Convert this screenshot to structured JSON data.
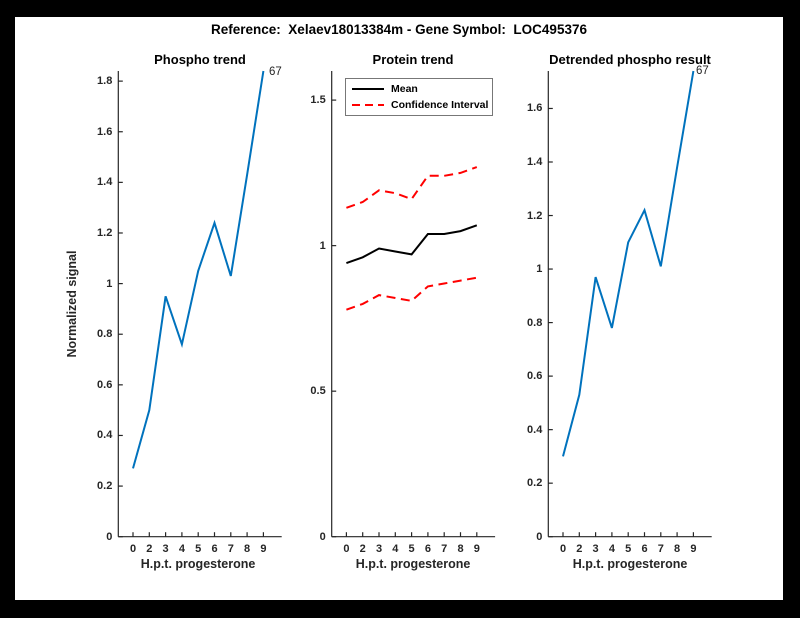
{
  "figure": {
    "title": "Reference:  Xelaev18013384m - Gene Symbol:  LOC495376",
    "background": "#ffffff",
    "frame_color": "#000000",
    "axis_color": "#262626",
    "accent_blue": "#0072BD",
    "accent_red": "#ff0000"
  },
  "chart_data": [
    {
      "type": "line",
      "title": "Phospho trend",
      "xlabel": "H.p.t. progesterone",
      "ylabel": "Normalized signal",
      "x_tick_labels": [
        "0",
        "2",
        "3",
        "4",
        "5",
        "6",
        "7",
        "8",
        "9"
      ],
      "y_tick_values": [
        0,
        0.2,
        0.4,
        0.6,
        0.8,
        1,
        1.2,
        1.4,
        1.6,
        1.8
      ],
      "y_tick_labels": [
        "0",
        "0.2",
        "0.4",
        "0.6",
        "0.8",
        "1",
        "1.2",
        "1.4",
        "1.6",
        "1.8"
      ],
      "ylim": [
        0,
        1.84
      ],
      "grid": false,
      "end_label": "67",
      "series": [
        {
          "name": "Phospho",
          "color": "#0072BD",
          "style": "solid",
          "values": [
            0.27,
            0.5,
            0.95,
            0.76,
            1.05,
            1.24,
            1.03,
            1.43,
            1.84
          ]
        }
      ]
    },
    {
      "type": "line",
      "title": "Protein trend",
      "xlabel": "H.p.t. progesterone",
      "ylabel": "",
      "x_tick_labels": [
        "0",
        "2",
        "3",
        "4",
        "5",
        "6",
        "7",
        "8",
        "9"
      ],
      "y_tick_values": [
        0,
        0.5,
        1,
        1.5
      ],
      "y_tick_labels": [
        "0",
        "0.5",
        "1",
        "1.5"
      ],
      "ylim": [
        0,
        1.6
      ],
      "grid": false,
      "legend": {
        "position": "northwest",
        "entries": [
          {
            "label": "Mean",
            "color": "#000000",
            "style": "solid"
          },
          {
            "label": "Confidence Interval",
            "color": "#ff0000",
            "style": "dashed"
          }
        ]
      },
      "series": [
        {
          "name": "Mean",
          "color": "#000000",
          "style": "solid",
          "values": [
            0.94,
            0.96,
            0.99,
            0.98,
            0.97,
            1.04,
            1.04,
            1.05,
            1.07
          ]
        },
        {
          "name": "CI upper",
          "color": "#ff0000",
          "style": "dashed",
          "values": [
            1.13,
            1.15,
            1.19,
            1.18,
            1.16,
            1.24,
            1.24,
            1.25,
            1.27
          ]
        },
        {
          "name": "CI lower",
          "color": "#ff0000",
          "style": "dashed",
          "values": [
            0.78,
            0.8,
            0.83,
            0.82,
            0.81,
            0.86,
            0.87,
            0.88,
            0.89
          ]
        }
      ]
    },
    {
      "type": "line",
      "title": "Detrended phospho result",
      "xlabel": "H.p.t. progesterone",
      "ylabel": "",
      "x_tick_labels": [
        "0",
        "2",
        "3",
        "4",
        "5",
        "6",
        "7",
        "8",
        "9"
      ],
      "y_tick_values": [
        0,
        0.2,
        0.4,
        0.6,
        0.8,
        1,
        1.2,
        1.4,
        1.6
      ],
      "y_tick_labels": [
        "0",
        "0.2",
        "0.4",
        "0.6",
        "0.8",
        "1",
        "1.2",
        "1.4",
        "1.6"
      ],
      "ylim": [
        0,
        1.74
      ],
      "grid": false,
      "end_label": "67",
      "series": [
        {
          "name": "Detrended phospho",
          "color": "#0072BD",
          "style": "solid",
          "values": [
            0.3,
            0.53,
            0.97,
            0.78,
            1.1,
            1.22,
            1.01,
            1.38,
            1.74
          ]
        }
      ]
    }
  ]
}
